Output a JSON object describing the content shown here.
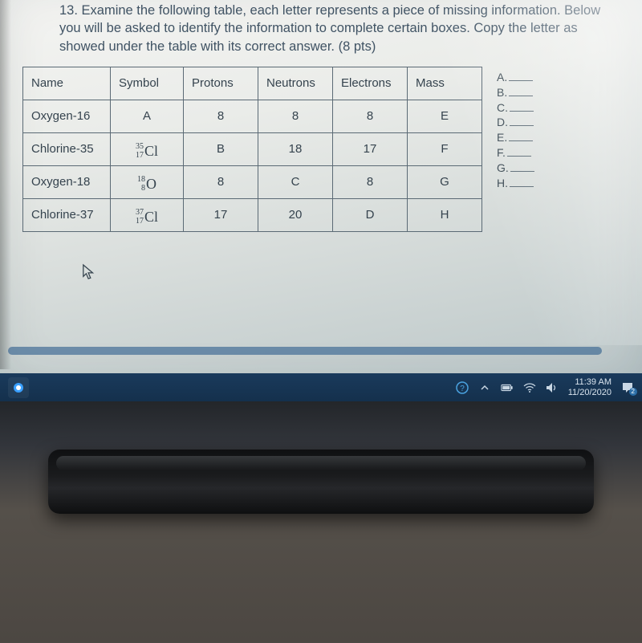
{
  "prompt_text": "13. Examine the following table, each letter represents a piece of missing information. Below you will be asked to identify the information to complete certain boxes. Copy the letter as showed under the table with its correct answer. (8 pts)",
  "table": {
    "headers": [
      "Name",
      "Symbol",
      "Protons",
      "Neutrons",
      "Electrons",
      "Mass"
    ],
    "rows": [
      {
        "name": "Oxygen-16",
        "symbol_kind": "letter",
        "symbol_letter": "A",
        "protons": "8",
        "neutrons": "8",
        "electrons": "8",
        "mass": "E"
      },
      {
        "name": "Chlorine-35",
        "symbol_kind": "nuclide",
        "mass_num": "35",
        "atomic_num": "17",
        "element": "Cl",
        "protons": "B",
        "neutrons": "18",
        "electrons": "17",
        "mass": "F"
      },
      {
        "name": "Oxygen-18",
        "symbol_kind": "nuclide",
        "mass_num": "18",
        "atomic_num": "8",
        "element": "O",
        "protons": "8",
        "neutrons": "C",
        "electrons": "8",
        "mass": "G"
      },
      {
        "name": "Chlorine-37",
        "symbol_kind": "nuclide",
        "mass_num": "37",
        "atomic_num": "17",
        "element": "Cl",
        "protons": "17",
        "neutrons": "20",
        "electrons": "D",
        "mass": "H"
      }
    ]
  },
  "answer_labels": [
    "A",
    "B",
    "C",
    "D",
    "E",
    "F",
    "G",
    "H"
  ],
  "taskbar": {
    "time": "11:39 AM",
    "date": "11/20/2020",
    "notification_count": "2"
  },
  "colors": {
    "table_border": "#5b6a75",
    "text": "#35434e",
    "taskbar_bg_top": "#1a3a5c",
    "taskbar_bg_bottom": "#14304c",
    "taskbar_text": "#c9d7e4",
    "screen_bg_top": "#f4f4f2",
    "screen_bg_bottom": "#b8c4c7"
  }
}
